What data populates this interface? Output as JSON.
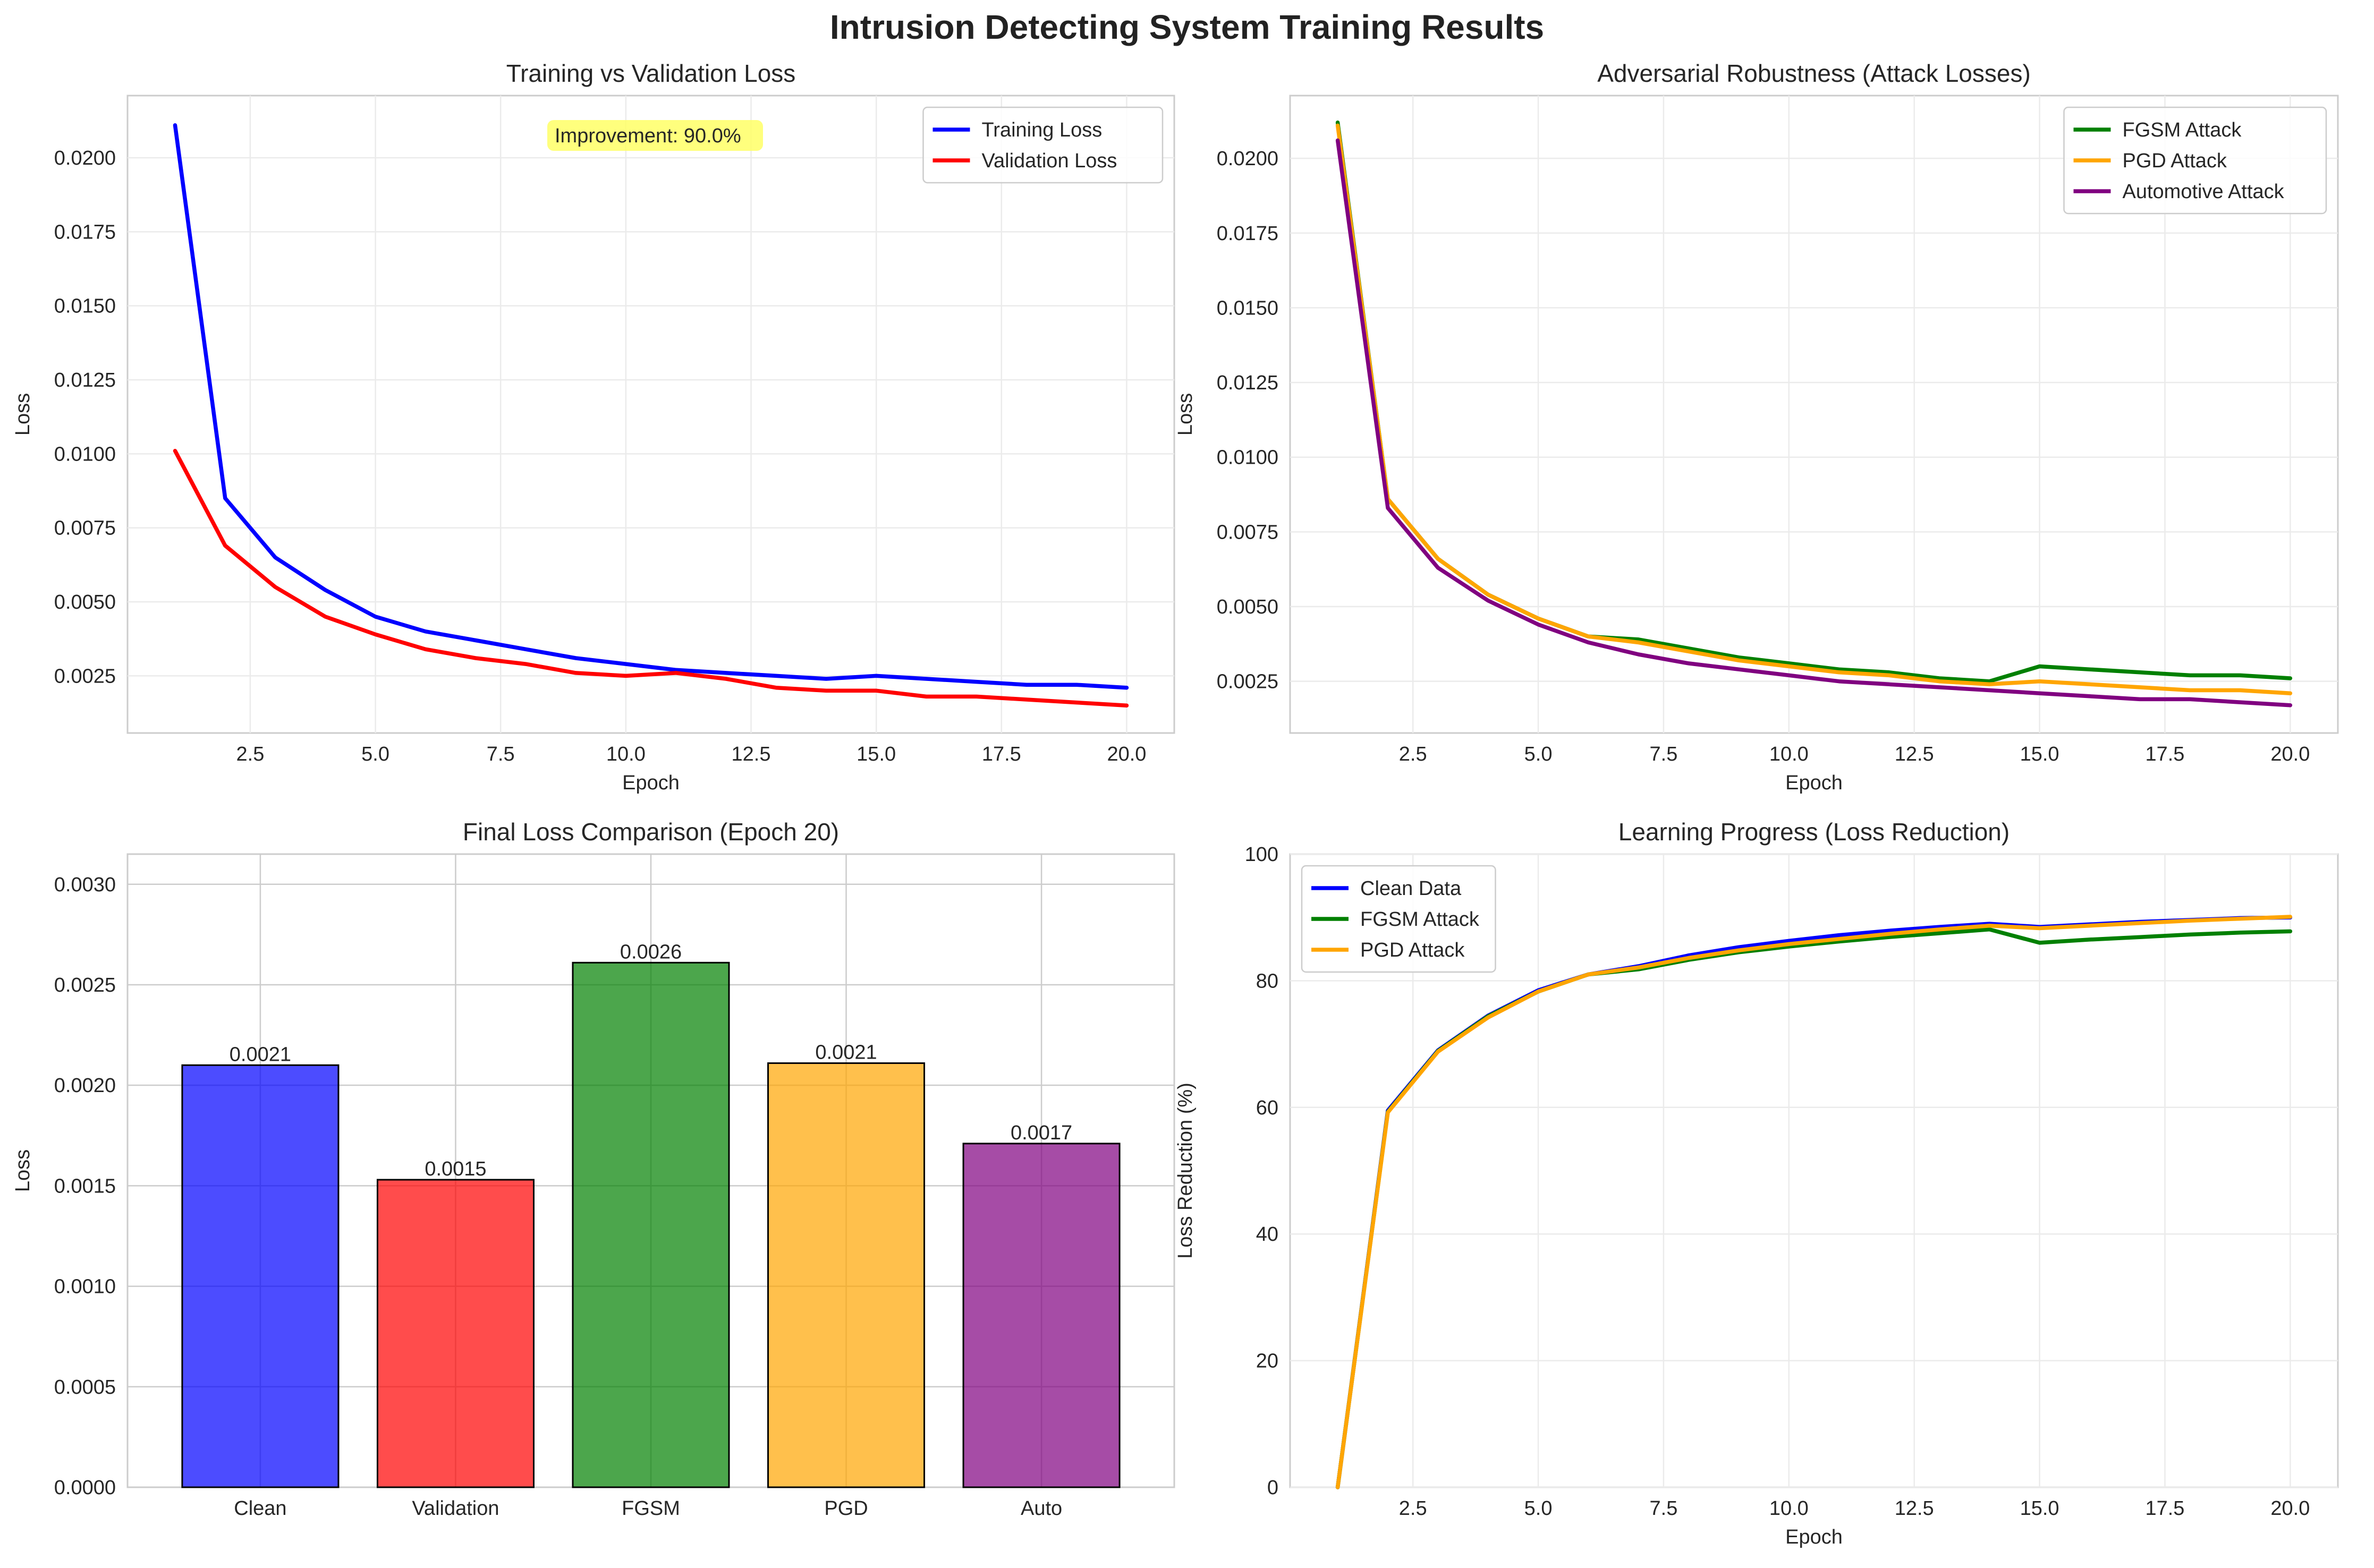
{
  "figure_title": "Intrusion Detecting System Training Results",
  "chart_data": [
    {
      "type": "line",
      "title": "Training vs Validation Loss",
      "xlabel": "Epoch",
      "ylabel": "Loss",
      "xlim": [
        0.05,
        20.95
      ],
      "ylim": [
        0.00057,
        0.0221
      ],
      "xticks": [
        "2.5",
        "5.0",
        "7.5",
        "10.0",
        "12.5",
        "15.0",
        "17.5",
        "20.0"
      ],
      "yticks": [
        "0.0025",
        "0.0050",
        "0.0075",
        "0.0100",
        "0.0125",
        "0.0150",
        "0.0175",
        "0.0200"
      ],
      "grid": true,
      "legend": "top-right",
      "annotation": "Improvement: 90.0%",
      "x": [
        1,
        2,
        3,
        4,
        5,
        6,
        7,
        8,
        9,
        10,
        11,
        12,
        13,
        14,
        15,
        16,
        17,
        18,
        19,
        20
      ],
      "series": [
        {
          "name": "Training Loss",
          "color": "#0000ff",
          "values": [
            0.0211,
            0.0085,
            0.0065,
            0.0054,
            0.0045,
            0.004,
            0.0037,
            0.0034,
            0.0031,
            0.0029,
            0.0027,
            0.0026,
            0.0025,
            0.0024,
            0.0025,
            0.0024,
            0.0023,
            0.0022,
            0.0022,
            0.0021
          ]
        },
        {
          "name": "Validation Loss",
          "color": "#ff0000",
          "values": [
            0.0101,
            0.0069,
            0.0055,
            0.0045,
            0.0039,
            0.0034,
            0.0031,
            0.0029,
            0.0026,
            0.0025,
            0.0026,
            0.0024,
            0.0021,
            0.002,
            0.002,
            0.0018,
            0.0018,
            0.0017,
            0.0016,
            0.0015
          ]
        }
      ]
    },
    {
      "type": "line",
      "title": "Adversarial Robustness (Attack Losses)",
      "xlabel": "Epoch",
      "ylabel": "Loss",
      "xlim": [
        0.05,
        20.95
      ],
      "ylim": [
        0.00077,
        0.0221
      ],
      "xticks": [
        "2.5",
        "5.0",
        "7.5",
        "10.0",
        "12.5",
        "15.0",
        "17.5",
        "20.0"
      ],
      "yticks": [
        "0.0025",
        "0.0050",
        "0.0075",
        "0.0100",
        "0.0125",
        "0.0150",
        "0.0175",
        "0.0200"
      ],
      "grid": true,
      "legend": "top-right",
      "x": [
        1,
        2,
        3,
        4,
        5,
        6,
        7,
        8,
        9,
        10,
        11,
        12,
        13,
        14,
        15,
        16,
        17,
        18,
        19,
        20
      ],
      "series": [
        {
          "name": "FGSM Attack",
          "color": "#008000",
          "values": [
            0.0212,
            0.0086,
            0.0066,
            0.0054,
            0.0046,
            0.004,
            0.0039,
            0.0036,
            0.0033,
            0.0031,
            0.0029,
            0.0028,
            0.0026,
            0.0025,
            0.003,
            0.0029,
            0.0028,
            0.0027,
            0.0027,
            0.0026
          ]
        },
        {
          "name": "PGD Attack",
          "color": "#ffa500",
          "values": [
            0.0211,
            0.0086,
            0.0066,
            0.0054,
            0.0046,
            0.004,
            0.0038,
            0.0035,
            0.0032,
            0.003,
            0.0028,
            0.0027,
            0.0025,
            0.0024,
            0.0025,
            0.0024,
            0.0023,
            0.0022,
            0.0022,
            0.0021
          ]
        },
        {
          "name": "Automotive Attack",
          "color": "#800080",
          "values": [
            0.0206,
            0.0083,
            0.0063,
            0.0052,
            0.0044,
            0.0038,
            0.0034,
            0.0031,
            0.0029,
            0.0027,
            0.0025,
            0.0024,
            0.0023,
            0.0022,
            0.0021,
            0.002,
            0.0019,
            0.0019,
            0.0018,
            0.0017
          ]
        }
      ]
    },
    {
      "type": "bar",
      "title": "Final Loss Comparison (Epoch 20)",
      "xlabel": "",
      "ylabel": "Loss",
      "ylim": [
        0,
        0.00315
      ],
      "yticks": [
        "0.0000",
        "0.0005",
        "0.0010",
        "0.0015",
        "0.0020",
        "0.0025",
        "0.0030"
      ],
      "grid": true,
      "categories": [
        "Clean",
        "Validation",
        "FGSM",
        "PGD",
        "Auto"
      ],
      "values": [
        0.0021,
        0.00153,
        0.00261,
        0.00211,
        0.00171
      ],
      "labels": [
        "0.0021",
        "0.0015",
        "0.0026",
        "0.0021",
        "0.0017"
      ],
      "colors": [
        "#0000ff",
        "#ff0000",
        "#008000",
        "#ffa500",
        "#800080"
      ]
    },
    {
      "type": "line",
      "title": "Learning Progress (Loss Reduction)",
      "xlabel": "Epoch",
      "ylabel": "Loss Reduction (%)",
      "xlim": [
        0.05,
        20.95
      ],
      "ylim": [
        0,
        100
      ],
      "xticks": [
        "2.5",
        "5.0",
        "7.5",
        "10.0",
        "12.5",
        "15.0",
        "17.5",
        "20.0"
      ],
      "yticks": [
        "0",
        "20",
        "40",
        "60",
        "80",
        "100"
      ],
      "grid": true,
      "legend": "top-left",
      "x": [
        1,
        2,
        3,
        4,
        5,
        6,
        7,
        8,
        9,
        10,
        11,
        12,
        13,
        14,
        15,
        16,
        17,
        18,
        19,
        20
      ],
      "series": [
        {
          "name": "Clean Data",
          "color": "#0000ff",
          "values": [
            0,
            59.5,
            69.0,
            74.5,
            78.5,
            81.0,
            82.3,
            84.0,
            85.3,
            86.3,
            87.2,
            87.9,
            88.5,
            89.0,
            88.5,
            88.9,
            89.3,
            89.6,
            89.9,
            90.0
          ]
        },
        {
          "name": "FGSM Attack",
          "color": "#008000",
          "values": [
            0,
            59.3,
            68.9,
            74.4,
            78.3,
            81.0,
            81.8,
            83.3,
            84.5,
            85.4,
            86.2,
            86.9,
            87.5,
            88.1,
            86.0,
            86.5,
            86.9,
            87.3,
            87.6,
            87.8
          ]
        },
        {
          "name": "PGD Attack",
          "color": "#ffa500",
          "values": [
            0,
            59.2,
            68.8,
            74.2,
            78.3,
            81.0,
            82.1,
            83.6,
            84.8,
            85.8,
            86.6,
            87.4,
            88.1,
            88.7,
            88.3,
            88.7,
            89.1,
            89.5,
            89.8,
            90.1
          ]
        }
      ]
    }
  ]
}
